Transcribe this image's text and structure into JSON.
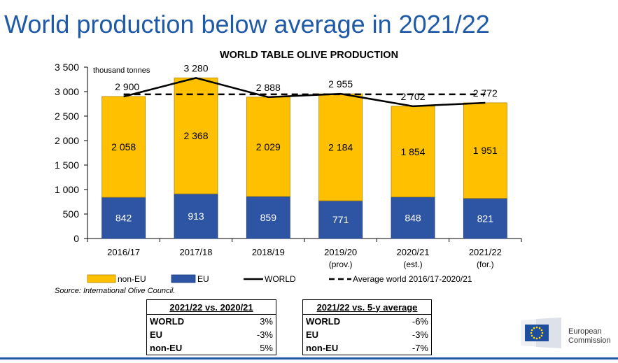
{
  "slide_title": "World production below average in 2021/22",
  "chart_data": {
    "type": "bar",
    "stacked": true,
    "title": "WORLD TABLE OLIVE PRODUCTION",
    "unit_label": "thousand tonnes",
    "ylim": [
      0,
      3500
    ],
    "yticks": [
      "0",
      "500",
      "1 000",
      "1 500",
      "2 000",
      "2 500",
      "3 000",
      "3 500"
    ],
    "ytick_values": [
      0,
      500,
      1000,
      1500,
      2000,
      2500,
      3000,
      3500
    ],
    "categories": [
      [
        "2016/17"
      ],
      [
        "2017/18"
      ],
      [
        "2018/19"
      ],
      [
        "2019/20",
        "(prov.)"
      ],
      [
        "2020/21",
        "(est.)"
      ],
      [
        "2021/22",
        "(for.)"
      ]
    ],
    "series": [
      {
        "name": "EU",
        "color": "#2e55a3",
        "values": [
          842,
          913,
          859,
          771,
          848,
          821
        ],
        "labels": [
          "842",
          "913",
          "859",
          "771",
          "848",
          "821"
        ]
      },
      {
        "name": "non-EU",
        "color": "#ffc000",
        "values": [
          2058,
          2368,
          2029,
          2184,
          1854,
          1951
        ],
        "labels": [
          "2 058",
          "2 368",
          "2 029",
          "2 184",
          "1 854",
          "1 951"
        ]
      }
    ],
    "world": {
      "name": "WORLD",
      "values": [
        2900,
        3280,
        2888,
        2955,
        2702,
        2772
      ],
      "labels": [
        "2 900",
        "3 280",
        "2 888",
        "2 955",
        "2 702",
        "2 772"
      ]
    },
    "average": {
      "name": "Average world 2016/17-2020/21",
      "value": 2945
    },
    "legend": [
      "non-EU",
      "EU",
      "WORLD",
      "Average world 2016/17-2020/21"
    ],
    "legend_position": "bottom"
  },
  "source": "Source: International Olive Council.",
  "table1": {
    "header": "2021/22 vs. 2020/21",
    "rows": [
      {
        "label": "WORLD",
        "value": "3%"
      },
      {
        "label": "EU",
        "value": "-3%"
      },
      {
        "label": "non-EU",
        "value": "5%"
      }
    ]
  },
  "table2": {
    "header": "2021/22 vs. 5-y average",
    "rows": [
      {
        "label": "WORLD",
        "value": "-6%"
      },
      {
        "label": "EU",
        "value": "-3%"
      },
      {
        "label": "non-EU",
        "value": "-7%"
      }
    ]
  },
  "logo": {
    "line1": "European",
    "line2": "Commission"
  },
  "colors": {
    "title": "#1f5aa8",
    "eu": "#2e55a3",
    "non_eu": "#ffc000",
    "flag": "#1f4e9f",
    "stars": "#ffdd00"
  }
}
